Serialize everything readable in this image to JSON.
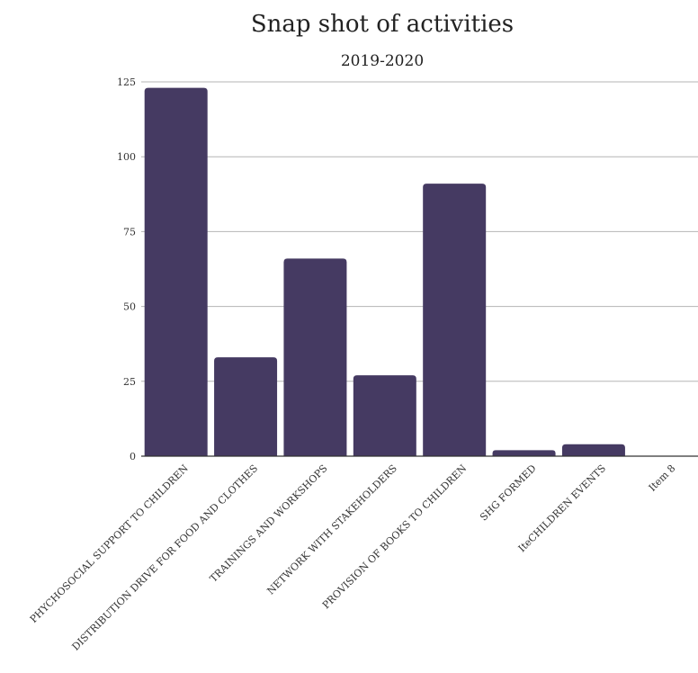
{
  "chart_data": {
    "type": "bar",
    "title": "Snap shot of  activities",
    "subtitle": "2019-2020",
    "xlabel": "",
    "ylabel": "",
    "categories": [
      "PHYCHOSOCIAL SUPPORT TO CHILDREN",
      "DISTRIBUTION DRIVE FOR FOOD AND CLOTHES",
      "TRAININGS AND WORKSHOPS",
      "NETWORK WITH STAKEHOLDERS",
      "PROVISION OF BOOKS TO CHILDREN",
      "SHG FORMED",
      "IteCHILDREN EVENTS",
      "Item 8"
    ],
    "values": [
      123,
      33,
      66,
      27,
      91,
      2,
      4,
      0
    ],
    "yticks": [
      0,
      25,
      50,
      75,
      100,
      125
    ],
    "ylim": [
      0,
      125
    ],
    "grid": true,
    "legend": "none",
    "bar_color": "#453a62",
    "grid_color": "#b5b5b5",
    "axis_color": "#333333"
  }
}
